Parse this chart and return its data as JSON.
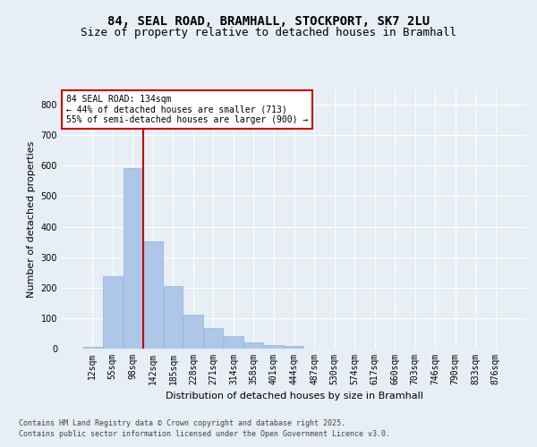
{
  "title1": "84, SEAL ROAD, BRAMHALL, STOCKPORT, SK7 2LU",
  "title2": "Size of property relative to detached houses in Bramhall",
  "xlabel": "Distribution of detached houses by size in Bramhall",
  "ylabel": "Number of detached properties",
  "categories": [
    "12sqm",
    "55sqm",
    "98sqm",
    "142sqm",
    "185sqm",
    "228sqm",
    "271sqm",
    "314sqm",
    "358sqm",
    "401sqm",
    "444sqm",
    "487sqm",
    "530sqm",
    "574sqm",
    "617sqm",
    "660sqm",
    "703sqm",
    "746sqm",
    "790sqm",
    "833sqm",
    "876sqm"
  ],
  "values": [
    5,
    237,
    593,
    353,
    205,
    110,
    68,
    40,
    20,
    13,
    8,
    0,
    0,
    0,
    0,
    0,
    0,
    0,
    0,
    0,
    0
  ],
  "bar_color": "#aec6e8",
  "bar_edge_color": "#8ab4d8",
  "property_line_color": "#cc0000",
  "property_line_index": 2.5,
  "annotation_text": "84 SEAL ROAD: 134sqm\n← 44% of detached houses are smaller (713)\n55% of semi-detached houses are larger (900) →",
  "annotation_box_edgecolor": "#cc0000",
  "footnote1": "Contains HM Land Registry data © Crown copyright and database right 2025.",
  "footnote2": "Contains public sector information licensed under the Open Government Licence v3.0.",
  "ylim": [
    0,
    850
  ],
  "yticks": [
    0,
    100,
    200,
    300,
    400,
    500,
    600,
    700,
    800
  ],
  "bg_color": "#e8eef5",
  "grid_color": "#ffffff",
  "title_fontsize": 10,
  "subtitle_fontsize": 9,
  "axis_label_fontsize": 8,
  "tick_fontsize": 7,
  "annotation_fontsize": 7,
  "footnote_fontsize": 6
}
